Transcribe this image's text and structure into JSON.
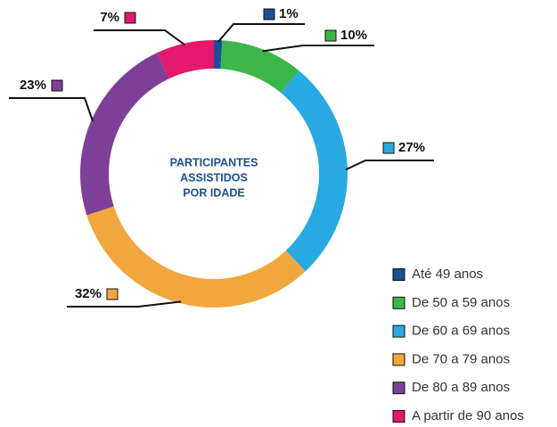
{
  "chart_data": {
    "type": "donut",
    "title": [
      "PARTICIPANTES",
      "ASSISTIDOS",
      "POR IDADE"
    ],
    "categories": [
      "Até 49 anos",
      "De 50 a 59 anos",
      "De 60 a 69 anos",
      "De 70 a 79 anos",
      "De 80 a 89 anos",
      "A partir de 90 anos"
    ],
    "values": [
      1,
      10,
      27,
      32,
      23,
      7
    ],
    "value_labels": [
      "1%",
      "10%",
      "27%",
      "32%",
      "23%",
      "7%"
    ],
    "colors": [
      "#1b4f93",
      "#3cb54a",
      "#29a9e1",
      "#f1a73e",
      "#7e3f98",
      "#e2196c"
    ],
    "legend": "bottom-right"
  }
}
